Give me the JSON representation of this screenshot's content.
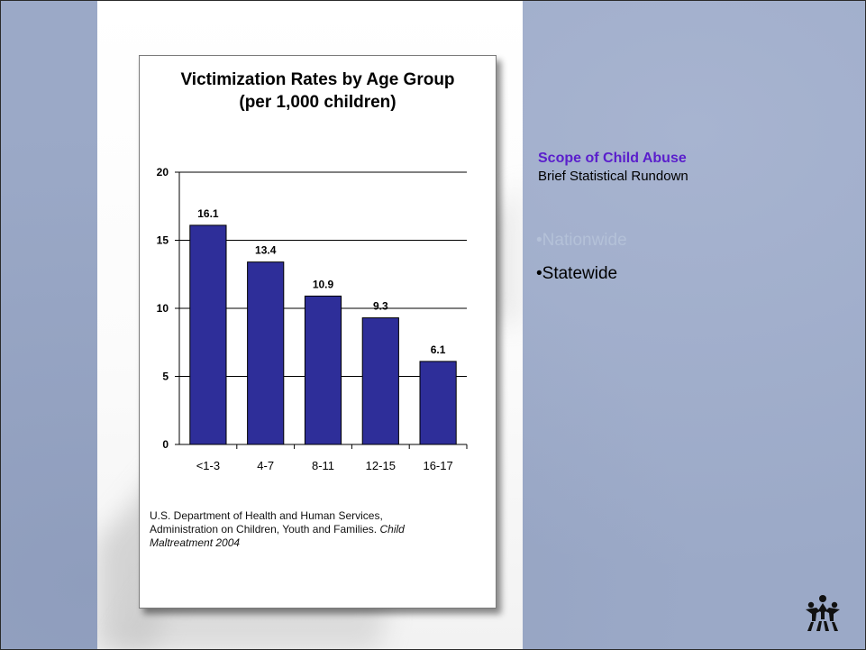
{
  "chart_data": {
    "type": "bar",
    "title_lines": [
      "Victimization Rates by Age Group",
      "(per 1,000 children)"
    ],
    "categories": [
      "<1-3",
      "4-7",
      "8-11",
      "12-15",
      "16-17"
    ],
    "values": [
      16.1,
      13.4,
      10.9,
      9.3,
      6.1
    ],
    "data_labels": [
      "16.1",
      "13.4",
      "10.9",
      "9.3",
      "6.1"
    ],
    "yticks": [
      0,
      5,
      10,
      15,
      20
    ],
    "ylim": [
      0,
      20
    ],
    "grid": true,
    "bar_color": "#2e2e99"
  },
  "source": {
    "line1": "U.S. Department of Health and Human Services,",
    "line2": "Administration on Children, Youth and Families.",
    "italic1": "Child",
    "italic2": "Maltreatment 2004"
  },
  "sidebar": {
    "title": "Scope of Child Abuse",
    "subtitle": "Brief Statistical Rundown",
    "bullets": [
      {
        "text": "•Nationwide",
        "state": "dim"
      },
      {
        "text": "•Statewide",
        "state": "active"
      }
    ]
  },
  "colors": {
    "accent": "#5a1ecc",
    "dim_bullet": "#b4c1d8",
    "background": "#9ba9c7"
  },
  "logo": {
    "icon": "family-figures-logo-icon"
  }
}
